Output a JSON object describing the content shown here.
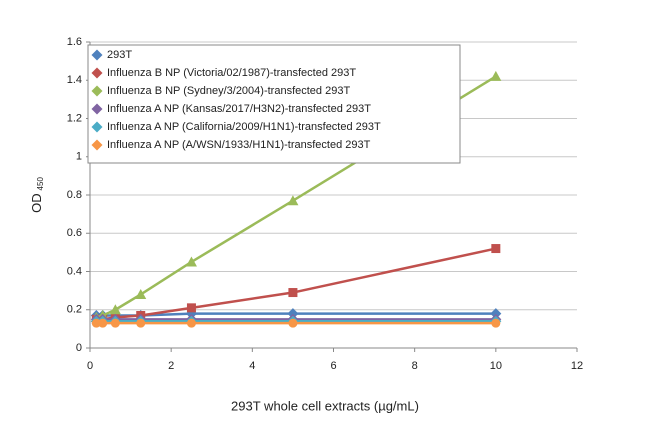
{
  "chart_data": {
    "type": "line",
    "x_label": "293T whole cell extracts (µg/mL)",
    "y_label": "OD",
    "y_label_sub": "450",
    "x": [
      0.156,
      0.3125,
      0.625,
      1.25,
      2.5,
      5,
      10
    ],
    "series": [
      {
        "name": "293T",
        "color": "#4f81bd",
        "marker": "diamond",
        "values": [
          0.17,
          0.17,
          0.17,
          0.17,
          0.18,
          0.18,
          0.18
        ]
      },
      {
        "name": "Influenza B NP (Victoria/02/1987)-transfected 293T",
        "color": "#c0504d",
        "marker": "square",
        "values": [
          0.15,
          0.15,
          0.16,
          0.17,
          0.21,
          0.29,
          0.52
        ]
      },
      {
        "name": "Influenza B NP (Sydney/3/2004)-transfected  293T",
        "color": "#9bbb59",
        "marker": "triangle",
        "values": [
          0.16,
          0.17,
          0.2,
          0.28,
          0.45,
          0.77,
          1.42
        ]
      },
      {
        "name": "Influenza A NP (Kansas/2017/H3N2)-transfected 293T",
        "color": "#8064a2",
        "marker": "diamond",
        "values": [
          0.15,
          0.15,
          0.15,
          0.15,
          0.15,
          0.15,
          0.15
        ]
      },
      {
        "name": "Influenza A NP (California/2009/H1N1)-transfected 293T",
        "color": "#4bacc6",
        "marker": "diamond",
        "values": [
          0.14,
          0.14,
          0.14,
          0.14,
          0.14,
          0.14,
          0.14
        ]
      },
      {
        "name": "Influenza A NP (A/WSN/1933/H1N1)-transfected  293T",
        "color": "#f79646",
        "marker": "circle",
        "values": [
          0.13,
          0.13,
          0.13,
          0.13,
          0.13,
          0.13,
          0.13
        ]
      }
    ],
    "xlim": [
      0,
      12
    ],
    "xticks": [
      0,
      2,
      4,
      6,
      8,
      10,
      12
    ],
    "ylim": [
      0,
      1.6
    ],
    "yticks": [
      0,
      0.2,
      0.4,
      0.6,
      0.8,
      1,
      1.2,
      1.4,
      1.6
    ],
    "grid": true,
    "legend": "top-left"
  }
}
